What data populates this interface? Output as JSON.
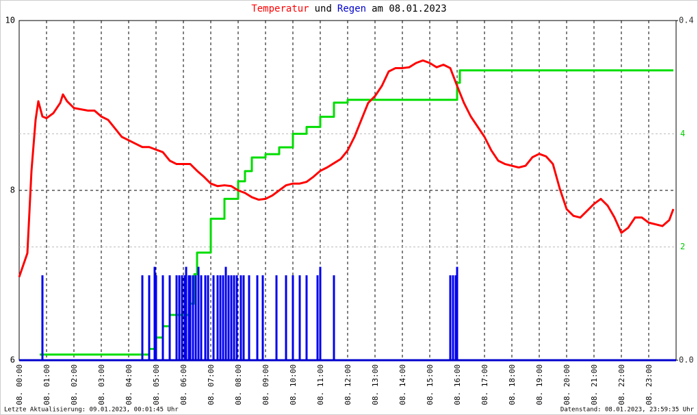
{
  "chart_data": {
    "type": "line",
    "title_parts": [
      "Temperatur",
      "und",
      "Regen",
      "am 08.01.2023"
    ],
    "title_colors": [
      "#ff0000",
      "#000000",
      "#0000cc",
      "#000000"
    ],
    "footer_left": "Letzte Aktualisierung: 09.01.2023, 00:01:45 Uhr",
    "footer_right": "Datenstand: 08.01.2023, 23:59:35 Uhr",
    "xlim": [
      0,
      24
    ],
    "xticks": [
      {
        "value": 0,
        "label": "08. 00:00"
      },
      {
        "value": 1,
        "label": "08. 01:00"
      },
      {
        "value": 2,
        "label": "08. 02:00"
      },
      {
        "value": 3,
        "label": "08. 03:00"
      },
      {
        "value": 4,
        "label": "08. 04:00"
      },
      {
        "value": 5,
        "label": "08. 05:00"
      },
      {
        "value": 6,
        "label": "08. 06:00"
      },
      {
        "value": 7,
        "label": "08. 07:00"
      },
      {
        "value": 8,
        "label": "08. 08:00"
      },
      {
        "value": 9,
        "label": "08. 09:00"
      },
      {
        "value": 10,
        "label": "08. 10:00"
      },
      {
        "value": 11,
        "label": "08. 11:00"
      },
      {
        "value": 12,
        "label": "08. 12:00"
      },
      {
        "value": 13,
        "label": "08. 13:00"
      },
      {
        "value": 14,
        "label": "08. 14:00"
      },
      {
        "value": 15,
        "label": "08. 15:00"
      },
      {
        "value": 16,
        "label": "08. 16:00"
      },
      {
        "value": 17,
        "label": "08. 17:00"
      },
      {
        "value": 18,
        "label": "08. 18:00"
      },
      {
        "value": 19,
        "label": "08. 19:00"
      },
      {
        "value": 20,
        "label": "08. 20:00"
      },
      {
        "value": 21,
        "label": "08. 21:00"
      },
      {
        "value": 22,
        "label": "08. 22:00"
      },
      {
        "value": 23,
        "label": "08. 23:00"
      }
    ],
    "ylim": [
      6,
      10
    ],
    "yticks": [
      6,
      8,
      10
    ],
    "y2lim": [
      0,
      6
    ],
    "y2ticks": [
      2,
      4
    ],
    "y2color": "#00cc00",
    "y3lim": [
      0,
      0.4
    ],
    "y3ticks": [
      {
        "value": 0,
        "label": "0.0"
      },
      {
        "value": 0.4,
        "label": "0.4"
      }
    ],
    "series": [
      {
        "kind": "line",
        "axis": "y",
        "color": "#ff0000",
        "x": [
          0,
          0.3,
          0.45,
          0.6,
          0.7,
          0.85,
          1,
          1.25,
          1.5,
          1.6,
          1.75,
          2,
          2.5,
          2.75,
          3,
          3.25,
          3.5,
          3.75,
          4,
          4.25,
          4.5,
          4.75,
          5,
          5.25,
          5.5,
          5.75,
          6,
          6.25,
          6.5,
          6.75,
          7,
          7.25,
          7.5,
          7.75,
          8,
          8.25,
          8.5,
          8.75,
          9,
          9.25,
          9.5,
          9.75,
          10,
          10.25,
          10.5,
          10.75,
          11,
          11.25,
          11.5,
          11.75,
          12,
          12.25,
          12.5,
          12.75,
          13,
          13.25,
          13.5,
          13.75,
          14,
          14.25,
          14.5,
          14.75,
          15,
          15.25,
          15.5,
          15.75,
          16,
          16.25,
          16.5,
          16.75,
          17,
          17.25,
          17.5,
          17.75,
          18,
          18.25,
          18.5,
          18.75,
          19,
          19.25,
          19.5,
          19.75,
          20,
          20.25,
          20.5,
          20.75,
          21,
          21.25,
          21.5,
          21.75,
          22,
          22.25,
          22.5,
          22.75,
          23,
          23.25,
          23.5,
          23.75,
          23.9
        ],
        "values": [
          6.98,
          7.26,
          8.23,
          8.83,
          9.05,
          8.87,
          8.85,
          8.91,
          9.03,
          9.13,
          9.05,
          8.97,
          8.94,
          8.94,
          8.87,
          8.83,
          8.73,
          8.63,
          8.59,
          8.55,
          8.51,
          8.51,
          8.48,
          8.45,
          8.35,
          8.31,
          8.31,
          8.31,
          8.23,
          8.16,
          8.08,
          8.05,
          8.06,
          8.05,
          8.0,
          7.97,
          7.92,
          7.89,
          7.9,
          7.94,
          8.0,
          8.06,
          8.08,
          8.08,
          8.1,
          8.16,
          8.23,
          8.27,
          8.32,
          8.37,
          8.47,
          8.63,
          8.83,
          9.03,
          9.11,
          9.23,
          9.4,
          9.44,
          9.44,
          9.45,
          9.5,
          9.53,
          9.5,
          9.45,
          9.48,
          9.44,
          9.23,
          9.03,
          8.87,
          8.75,
          8.63,
          8.47,
          8.35,
          8.31,
          8.29,
          8.27,
          8.29,
          8.39,
          8.43,
          8.4,
          8.31,
          8.02,
          7.78,
          7.7,
          7.68,
          7.76,
          7.84,
          7.9,
          7.82,
          7.68,
          7.5,
          7.56,
          7.68,
          7.68,
          7.62,
          7.6,
          7.58,
          7.65,
          7.78
        ]
      },
      {
        "kind": "step",
        "axis": "y2",
        "color": "#00dd00",
        "x": [
          0.75,
          4.5,
          4.75,
          5,
          5.25,
          5.5,
          6.25,
          6.4,
          6.5,
          7,
          7.5,
          8,
          8.25,
          8.5,
          9,
          9.5,
          10,
          10.5,
          11,
          11.5,
          12,
          15.75,
          16,
          16.1,
          23.9
        ],
        "values": [
          0.1,
          0.1,
          0.2,
          0.4,
          0.6,
          0.8,
          1.0,
          1.52,
          1.9,
          2.5,
          2.85,
          3.16,
          3.34,
          3.58,
          3.64,
          3.76,
          4.0,
          4.12,
          4.3,
          4.55,
          4.6,
          4.6,
          4.9,
          5.12,
          5.12
        ]
      },
      {
        "kind": "bars",
        "axis": "y3",
        "color": "#0000ee",
        "x": [
          0.85,
          4.5,
          4.75,
          4.95,
          5.0,
          5.25,
          5.5,
          5.75,
          5.85,
          5.95,
          6.05,
          6.1,
          6.2,
          6.25,
          6.35,
          6.45,
          6.55,
          6.65,
          6.8,
          6.9,
          7.1,
          7.25,
          7.35,
          7.45,
          7.55,
          7.65,
          7.75,
          7.85,
          7.95,
          8.1,
          8.2,
          8.4,
          8.7,
          8.9,
          9.4,
          9.75,
          10.0,
          10.25,
          10.5,
          10.9,
          11.0,
          11.5,
          15.75,
          15.85,
          15.95,
          16.0
        ],
        "values": [
          0.1,
          0.1,
          0.1,
          0.11,
          0.1,
          0.1,
          0.1,
          0.1,
          0.1,
          0.1,
          0.1,
          0.11,
          0.1,
          0.1,
          0.1,
          0.1,
          0.11,
          0.1,
          0.1,
          0.1,
          0.1,
          0.1,
          0.1,
          0.1,
          0.11,
          0.1,
          0.1,
          0.1,
          0.1,
          0.1,
          0.1,
          0.1,
          0.1,
          0.1,
          0.1,
          0.1,
          0.1,
          0.1,
          0.1,
          0.1,
          0.11,
          0.1,
          0.1,
          0.1,
          0.1,
          0.11
        ]
      }
    ]
  }
}
